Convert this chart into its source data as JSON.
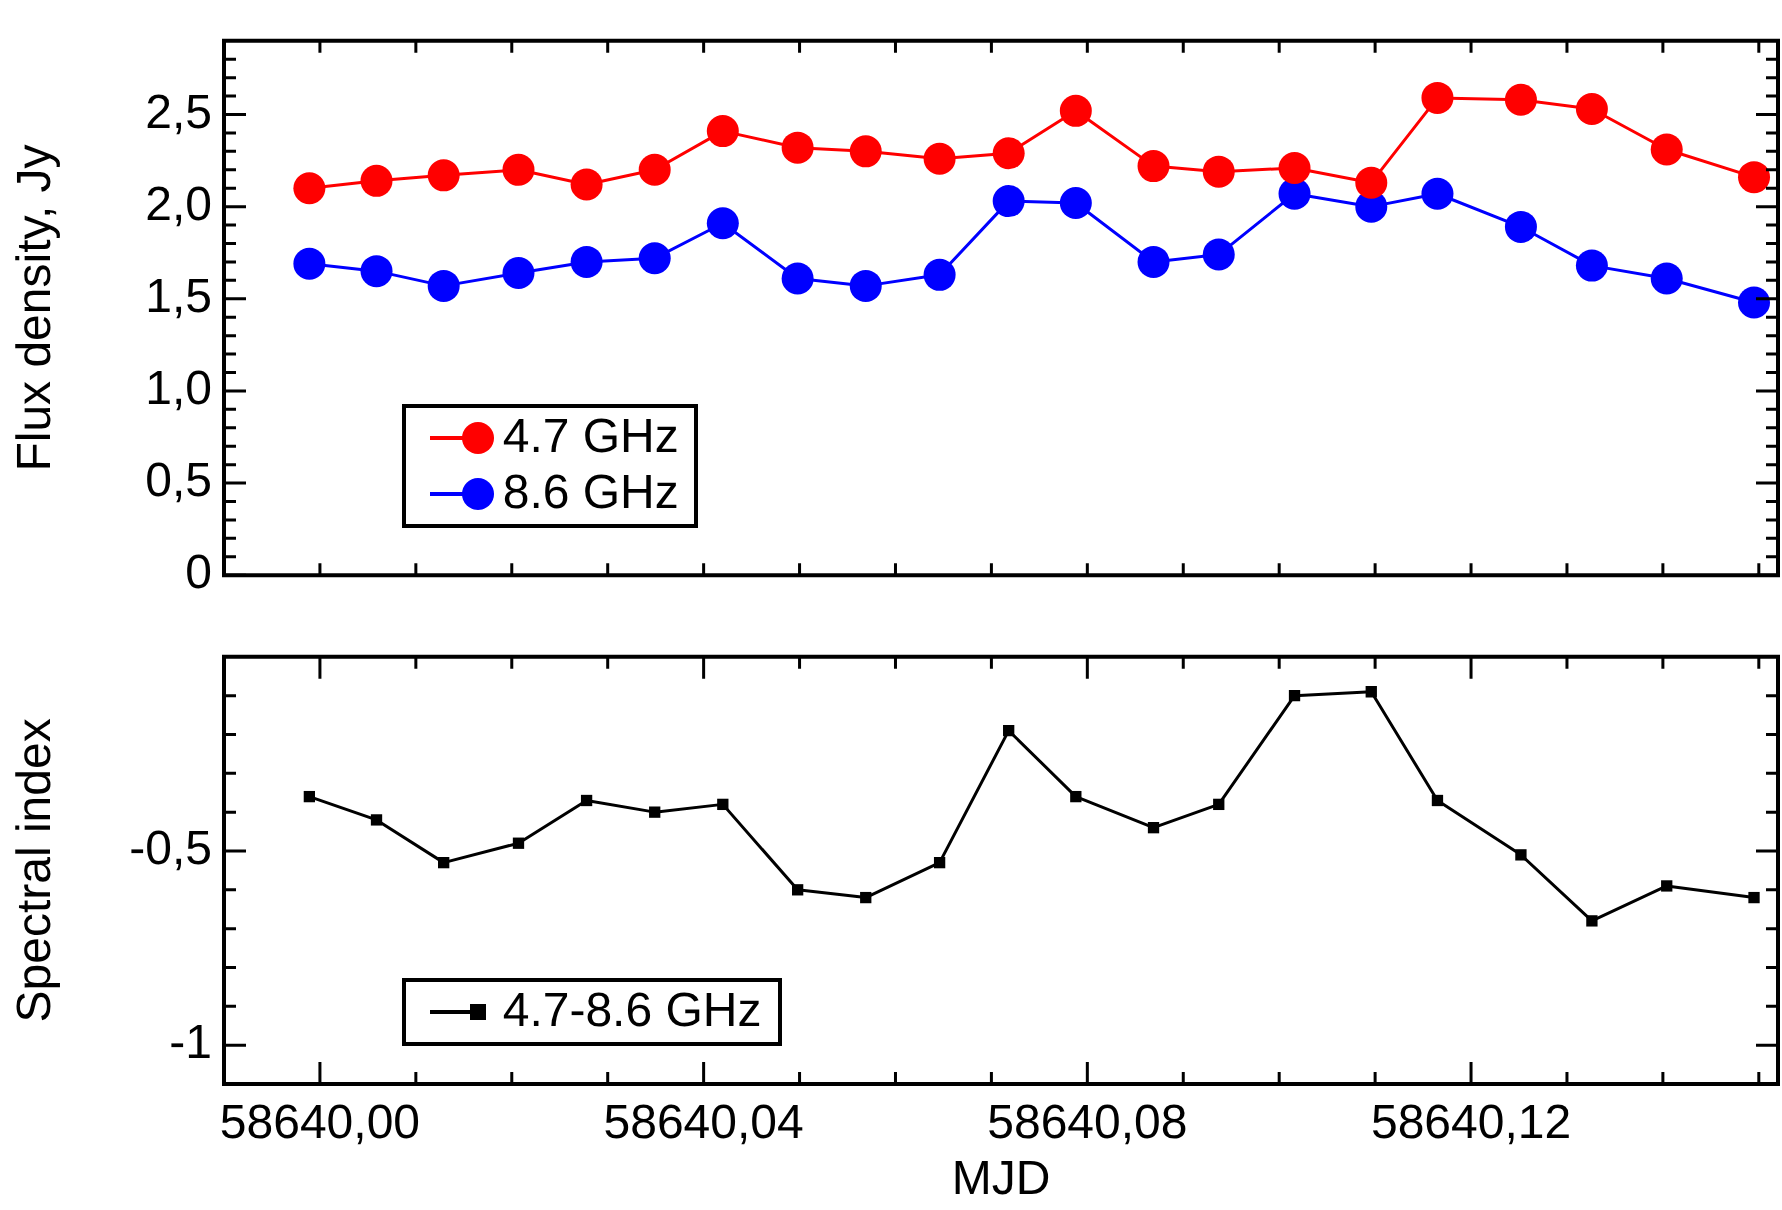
{
  "chart_data": [
    {
      "type": "line",
      "ylabel": "Flux density, Jy",
      "legend": "bottom left",
      "marker": "circle",
      "tick_labels": "y",
      "x": [
        58639.9989,
        58640.0059,
        58640.0129,
        58640.0207,
        58640.0278,
        58640.0349,
        58640.042,
        58640.0498,
        58640.0569,
        58640.0646,
        58640.0718,
        58640.0788,
        58640.0869,
        58640.0937,
        58640.1016,
        58640.1096,
        58640.1165,
        58640.1252,
        58640.1326,
        58640.1404,
        58640.1495
      ],
      "series": [
        {
          "name": "4.7 GHz",
          "color": "#ff0000",
          "values": [
            2.1,
            2.14,
            2.17,
            2.2,
            2.12,
            2.2,
            2.41,
            2.32,
            2.3,
            2.26,
            2.29,
            2.52,
            2.22,
            2.19,
            2.21,
            2.13,
            2.59,
            2.58,
            2.53,
            2.31,
            2.16
          ]
        },
        {
          "name": "8.6 GHz",
          "color": "#0000ff",
          "values": [
            1.69,
            1.65,
            1.57,
            1.64,
            1.7,
            1.72,
            1.91,
            1.61,
            1.57,
            1.63,
            2.03,
            2.02,
            1.7,
            1.74,
            2.07,
            2.0,
            2.07,
            1.89,
            1.68,
            1.61,
            1.48
          ]
        }
      ],
      "xlim": [
        58639.99,
        58640.152
      ],
      "ylim": [
        0,
        2.9
      ],
      "xticks": [
        {
          "value": 58640.0,
          "label": null
        },
        {
          "value": 58640.01,
          "label": null
        },
        {
          "value": 58640.02,
          "label": null
        },
        {
          "value": 58640.03,
          "label": null
        },
        {
          "value": 58640.04,
          "label": null
        },
        {
          "value": 58640.05,
          "label": null
        },
        {
          "value": 58640.06,
          "label": null
        },
        {
          "value": 58640.07,
          "label": null
        },
        {
          "value": 58640.08,
          "label": null
        },
        {
          "value": 58640.09,
          "label": null
        },
        {
          "value": 58640.1,
          "label": null
        },
        {
          "value": 58640.11,
          "label": null
        },
        {
          "value": 58640.12,
          "label": null
        },
        {
          "value": 58640.13,
          "label": null
        },
        {
          "value": 58640.14,
          "label": null
        },
        {
          "value": 58640.15,
          "label": null
        }
      ],
      "yticks": [
        0,
        {
          "value": 0.1,
          "label": null
        },
        {
          "value": 0.2,
          "label": null
        },
        {
          "value": 0.3,
          "label": null
        },
        {
          "value": 0.4,
          "label": null
        },
        {
          "value": 0.5,
          "label": "0,5"
        },
        {
          "value": 0.6,
          "label": null
        },
        {
          "value": 0.7,
          "label": null
        },
        {
          "value": 0.8,
          "label": null
        },
        {
          "value": 0.9,
          "label": null
        },
        {
          "value": 1.0,
          "label": "1,0"
        },
        {
          "value": 1.1,
          "label": null
        },
        {
          "value": 1.2,
          "label": null
        },
        {
          "value": 1.3,
          "label": null
        },
        {
          "value": 1.4,
          "label": null
        },
        {
          "value": 1.5,
          "label": "1,5"
        },
        {
          "value": 1.6,
          "label": null
        },
        {
          "value": 1.7,
          "label": null
        },
        {
          "value": 1.8,
          "label": null
        },
        {
          "value": 1.9,
          "label": null
        },
        {
          "value": 2.0,
          "label": "2,0"
        },
        {
          "value": 2.1,
          "label": null
        },
        {
          "value": 2.2,
          "label": null
        },
        {
          "value": 2.3,
          "label": null
        },
        {
          "value": 2.4,
          "label": null
        },
        {
          "value": 2.5,
          "label": "2,5"
        },
        {
          "value": 2.6,
          "label": null
        },
        {
          "value": 2.7,
          "label": null
        },
        {
          "value": 2.8,
          "label": null
        }
      ]
    },
    {
      "type": "line",
      "ylabel": "Spectral index",
      "xlabel": "MJD",
      "legend": "bottom left",
      "marker": "square",
      "x": [
        58639.9989,
        58640.0059,
        58640.0129,
        58640.0207,
        58640.0278,
        58640.0349,
        58640.042,
        58640.0498,
        58640.0569,
        58640.0646,
        58640.0718,
        58640.0788,
        58640.0869,
        58640.0937,
        58640.1016,
        58640.1096,
        58640.1165,
        58640.1252,
        58640.1326,
        58640.1404,
        58640.1495
      ],
      "series": [
        {
          "name": "4.7-8.6 GHz",
          "color": "#000000",
          "values": [
            -0.36,
            -0.42,
            -0.53,
            -0.48,
            -0.37,
            -0.4,
            -0.38,
            -0.6,
            -0.62,
            -0.53,
            -0.19,
            -0.36,
            -0.44,
            -0.38,
            -0.1,
            -0.09,
            -0.37,
            -0.51,
            -0.68,
            -0.59,
            -0.62
          ]
        }
      ],
      "xlim": [
        58639.99,
        58640.152
      ],
      "ylim": [
        -1.1,
        0
      ],
      "xticks": [
        {
          "value": 58640.0,
          "label": "58640,00"
        },
        {
          "value": 58640.01,
          "label": null
        },
        {
          "value": 58640.02,
          "label": null
        },
        {
          "value": 58640.03,
          "label": null
        },
        {
          "value": 58640.04,
          "label": "58640,04"
        },
        {
          "value": 58640.05,
          "label": null
        },
        {
          "value": 58640.06,
          "label": null
        },
        {
          "value": 58640.07,
          "label": null
        },
        {
          "value": 58640.08,
          "label": "58640,08"
        },
        {
          "value": 58640.09,
          "label": null
        },
        {
          "value": 58640.1,
          "label": null
        },
        {
          "value": 58640.11,
          "label": null
        },
        {
          "value": 58640.12,
          "label": "58640,12"
        },
        {
          "value": 58640.13,
          "label": null
        },
        {
          "value": 58640.14,
          "label": null
        },
        {
          "value": 58640.15,
          "label": null
        }
      ],
      "yticks": [
        {
          "value": -1.0,
          "label": "-1"
        },
        {
          "value": -0.9,
          "label": null
        },
        {
          "value": -0.8,
          "label": null
        },
        {
          "value": -0.7,
          "label": null
        },
        {
          "value": -0.6,
          "label": null
        },
        {
          "value": -0.5,
          "label": "-0,5"
        },
        {
          "value": -0.4,
          "label": null
        },
        {
          "value": -0.3,
          "label": null
        },
        {
          "value": -0.2,
          "label": null
        },
        {
          "value": -0.1,
          "label": null
        }
      ]
    }
  ]
}
